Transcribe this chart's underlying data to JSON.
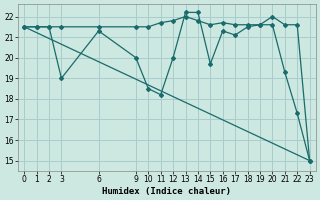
{
  "xlabel": "Humidex (Indice chaleur)",
  "bg_color": "#cce8e0",
  "grid_color": "#aacccc",
  "line_color": "#1a6b6b",
  "ylim": [
    14.5,
    22.6
  ],
  "xlim": [
    -0.5,
    23.5
  ],
  "yticks": [
    15,
    16,
    17,
    18,
    19,
    20,
    21,
    22
  ],
  "xticks": [
    0,
    1,
    2,
    3,
    6,
    9,
    10,
    11,
    12,
    13,
    14,
    15,
    16,
    17,
    18,
    19,
    20,
    21,
    22,
    23
  ],
  "line1_x": [
    0,
    1,
    2,
    3,
    6,
    9,
    10,
    11,
    12,
    13,
    14,
    15,
    16,
    17,
    18,
    19,
    20,
    21,
    22,
    23
  ],
  "line1_y": [
    21.5,
    21.5,
    21.5,
    21.5,
    21.5,
    21.5,
    21.5,
    21.7,
    21.8,
    22.0,
    21.8,
    21.6,
    21.7,
    21.6,
    21.6,
    21.6,
    22.0,
    21.6,
    21.6,
    15.0
  ],
  "line2_x": [
    0,
    1,
    2,
    3,
    6,
    9,
    10,
    11,
    12,
    13,
    14,
    15,
    16,
    17,
    18,
    19,
    20,
    21,
    22,
    23
  ],
  "line2_y": [
    21.5,
    21.5,
    21.5,
    19.0,
    21.3,
    20.0,
    18.5,
    18.2,
    20.0,
    22.2,
    22.2,
    19.7,
    21.3,
    21.1,
    21.5,
    21.6,
    21.6,
    19.3,
    17.3,
    15.0
  ],
  "line3_x": [
    0,
    23
  ],
  "line3_y": [
    21.5,
    15.0
  ]
}
